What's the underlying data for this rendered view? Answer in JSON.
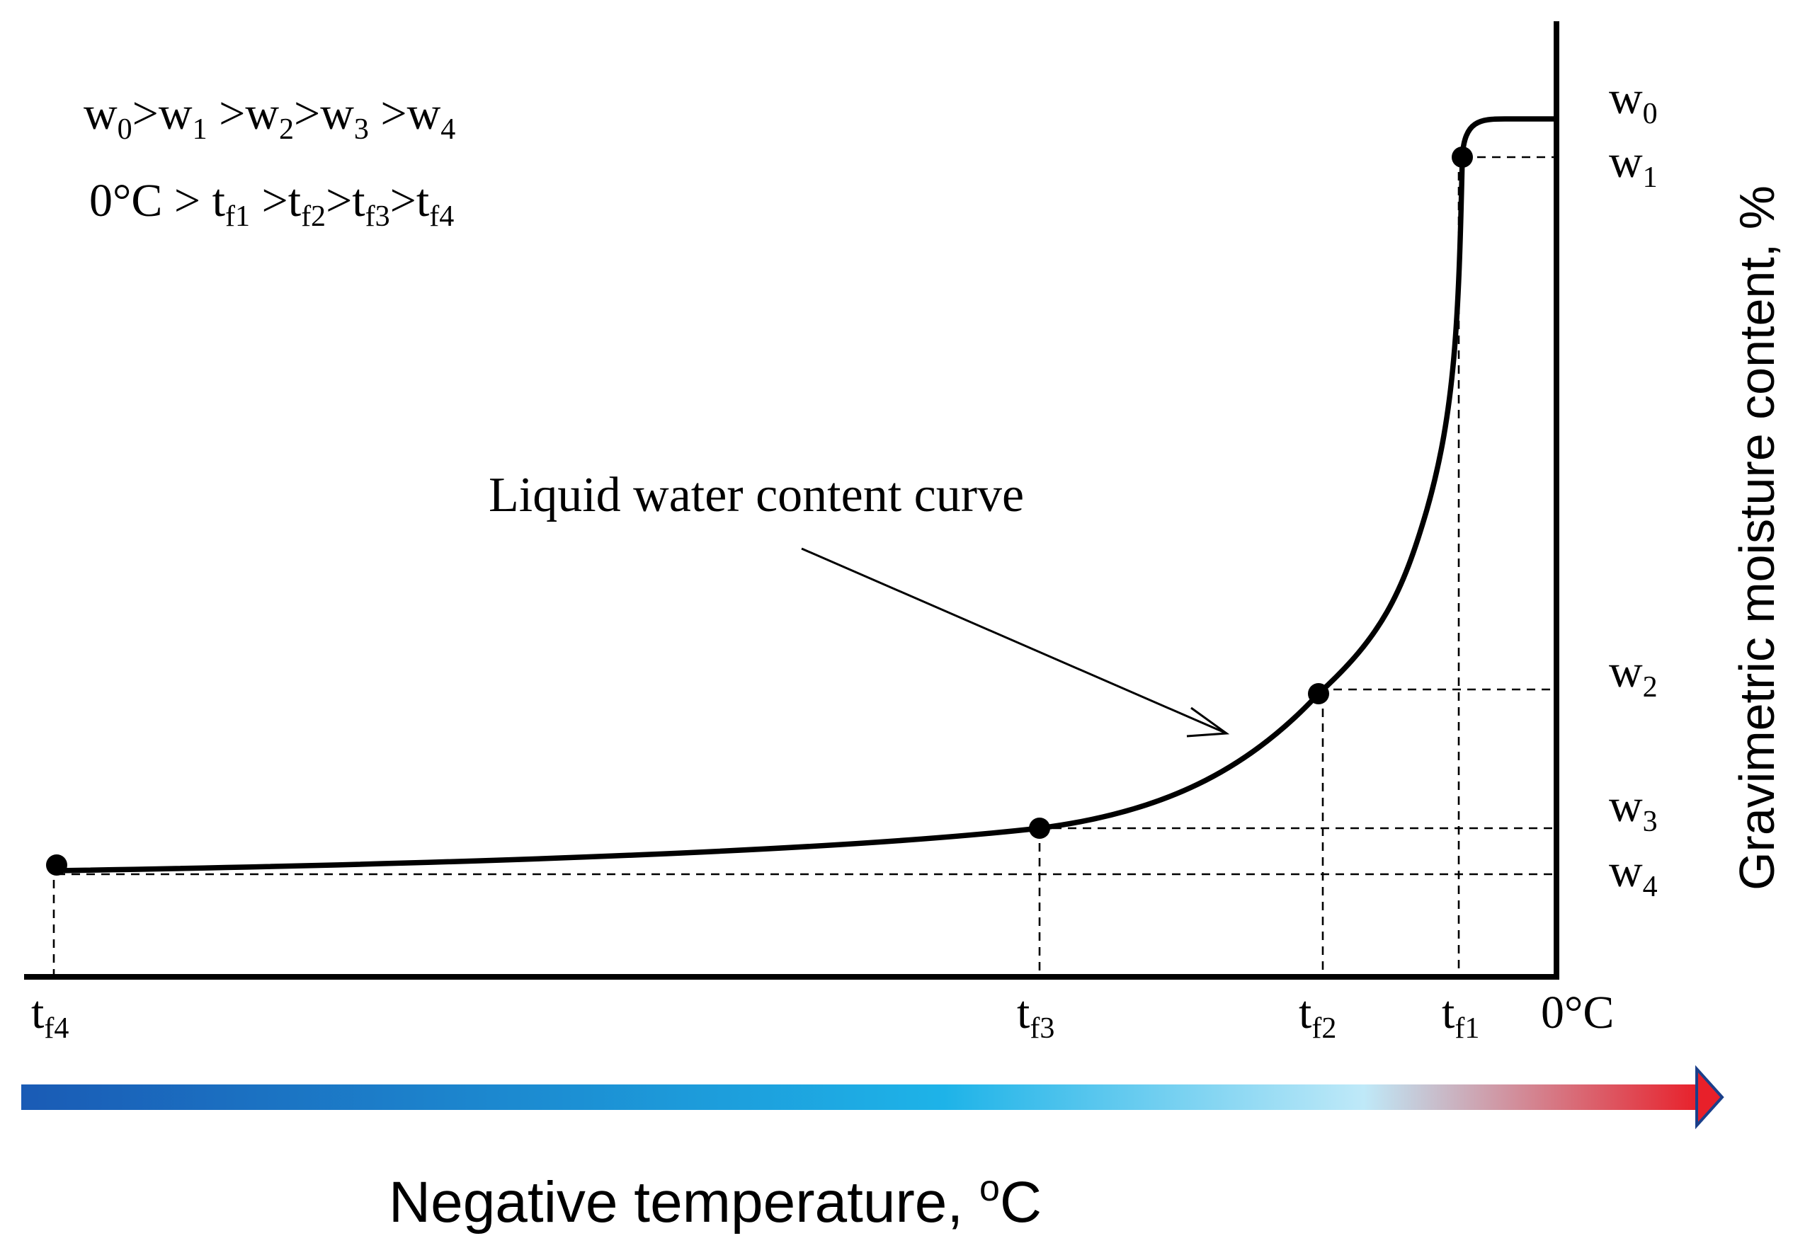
{
  "legend": {
    "moisture_prefix": "w",
    "moisture_indices": [
      "0",
      "1",
      "2",
      "3",
      "4"
    ],
    "moisture_separators": [
      ">",
      " >",
      ">",
      " >"
    ],
    "temp_start": "0°C > ",
    "temp_prefix": "t",
    "temp_indices": [
      "f1",
      "f2",
      "f3",
      "f4"
    ],
    "temp_separators": [
      " >",
      ">",
      ">"
    ]
  },
  "curve_label": "Liquid water content curve",
  "y_axis": {
    "title": "Gravimetric moisture content, %",
    "ticks": [
      {
        "base": "w",
        "sub": "0"
      },
      {
        "base": "w",
        "sub": "1"
      },
      {
        "base": "w",
        "sub": "2"
      },
      {
        "base": "w",
        "sub": "3"
      },
      {
        "base": "w",
        "sub": "4"
      }
    ]
  },
  "x_axis": {
    "ticks": [
      {
        "base": "t",
        "sub": "f4"
      },
      {
        "base": "t",
        "sub": "f3"
      },
      {
        "base": "t",
        "sub": "f2"
      },
      {
        "base": "t",
        "sub": "f1"
      }
    ],
    "origin_label": "0°C",
    "title_main": "Negative  temperature, ",
    "title_sup": "o",
    "title_unit": "C"
  },
  "colors": {
    "arrow_cold": "#1a5bb5",
    "arrow_mid": "#1eb3e8",
    "arrow_light": "#bfe9f8",
    "arrow_warm": "#e8202a"
  }
}
